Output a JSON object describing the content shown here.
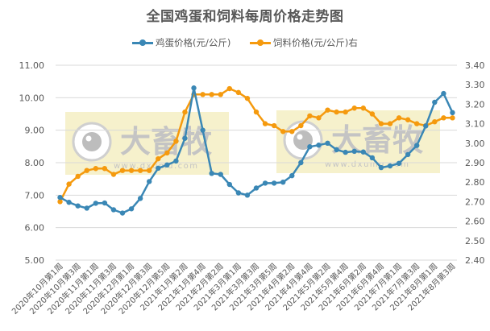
{
  "chart_data": {
    "type": "line",
    "title": "全国鸡蛋和饲料每周价格走势图",
    "xlabel": "",
    "ylabel": "",
    "y2label": "",
    "ylim": [
      5.0,
      11.0
    ],
    "y2lim": [
      2.4,
      3.4
    ],
    "yticks": [
      "5.00",
      "6.00",
      "7.00",
      "8.00",
      "9.00",
      "10.00",
      "11.00"
    ],
    "y2ticks": [
      "2.40",
      "2.50",
      "2.60",
      "2.70",
      "2.80",
      "2.90",
      "3.00",
      "3.10",
      "3.20",
      "3.30",
      "3.40"
    ],
    "grid": true,
    "legend_position": "top",
    "categories": [
      "2020年10月第1周",
      "2020年10月第2周",
      "2020年10月第3周",
      "2020年10月第4周",
      "2020年11月第1周",
      "2020年11月第2周",
      "2020年11月第3周",
      "2020年11月第4周",
      "2020年12月第1周",
      "2020年12月第2周",
      "2020年12月第3周",
      "2020年12月第4周",
      "2020年12月第5周",
      "2021年1月第1周",
      "2021年1月第2周",
      "2021年1月第3周",
      "2021年1月第4周",
      "2021年2月第1周",
      "2021年2月第2周",
      "2021年2月第3周",
      "2021年3月第1周",
      "2021年3月第2周",
      "2021年3月第3周",
      "2021年3月第4周",
      "2021年3月第5周",
      "2021年4月第1周",
      "2021年4月第2周",
      "2021年4月第3周",
      "2021年4月第4周",
      "2021年5月第1周",
      "2021年5月第2周",
      "2021年5月第3周",
      "2021年5月第4周",
      "2021年6月第1周",
      "2021年6月第2周",
      "2021年6月第3周",
      "2021年6月第4周",
      "2021年6月第5周",
      "2021年7月第1周",
      "2021年7月第2周",
      "2021年7月第3周",
      "2021年7月第4周",
      "2021年8月第1周",
      "2021年8月第2周",
      "2021年8月第3周"
    ],
    "visible_tick_labels": [
      "2020年10月第1周",
      "2020年10月第3周",
      "2020年11月第1周",
      "2020年11月第3周",
      "2020年12月第1周",
      "2020年12月第3周",
      "2020年12月第5周",
      "2021年1月第2周",
      "2021年1月第4周",
      "2021年2月第2周",
      "2021年3月第1周",
      "2021年3月第3周",
      "2021年3月第5周",
      "2021年4月第2周",
      "2021年4月第4周",
      "2021年5月第2周",
      "2021年5月第4周",
      "2021年6月第2周",
      "2021年6月第4周",
      "2021年7月第1周",
      "2021年7月第3周",
      "2021年8月第1周",
      "2021年8月第3周"
    ],
    "series": [
      {
        "name": "鸡蛋价格(元/公斤)",
        "axis": "left",
        "color": "#3A87B5",
        "values": [
          6.93,
          6.78,
          6.67,
          6.6,
          6.75,
          6.76,
          6.55,
          6.45,
          6.58,
          6.9,
          7.42,
          7.83,
          7.93,
          8.05,
          8.75,
          10.3,
          9.0,
          7.67,
          7.64,
          7.33,
          7.07,
          7.0,
          7.22,
          7.37,
          7.37,
          7.4,
          7.6,
          8.0,
          8.49,
          8.54,
          8.6,
          8.4,
          8.32,
          8.35,
          8.33,
          8.15,
          7.85,
          7.9,
          7.98,
          8.25,
          8.53,
          9.13,
          9.86,
          10.13,
          9.54
        ]
      },
      {
        "name": "饲料价格(元/公斤)右",
        "axis": "right",
        "color": "#F59A0E",
        "values": [
          2.7,
          2.79,
          2.83,
          2.86,
          2.87,
          2.87,
          2.84,
          2.86,
          2.86,
          2.86,
          2.86,
          2.92,
          2.95,
          3.01,
          3.16,
          3.25,
          3.25,
          3.25,
          3.25,
          3.28,
          3.26,
          3.23,
          3.16,
          3.1,
          3.09,
          3.06,
          3.06,
          3.09,
          3.14,
          3.13,
          3.17,
          3.16,
          3.16,
          3.18,
          3.18,
          3.15,
          3.1,
          3.1,
          3.13,
          3.12,
          3.1,
          3.09,
          3.11,
          3.13,
          3.13
        ]
      }
    ],
    "watermark": {
      "text": "大畜牧",
      "url_text": "www.dxumu.com",
      "box_color": "#F5F0C6"
    }
  },
  "colors": {
    "title": "#595959",
    "axis_text": "#595959",
    "grid": "#D9D9D9"
  }
}
